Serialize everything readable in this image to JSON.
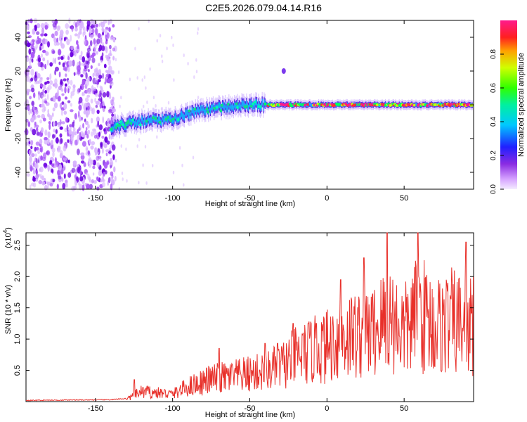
{
  "title": "C2E5.2026.079.04.14.R16",
  "colors": {
    "snr_line": "#e8302a",
    "axis": "#000000",
    "spectrogram_bg": "#ffffff"
  },
  "spectrogram": {
    "xlabel": "Height of straight line (km)",
    "ylabel": "Frequency (Hz)",
    "xlim": [
      -195,
      95
    ],
    "ylim": [
      -50,
      50
    ],
    "xticks": [
      -150,
      -100,
      -50,
      0,
      50
    ],
    "yticks": [
      -40,
      -20,
      0,
      20,
      40
    ],
    "colorbar_label": "Normalized spectral amplitude",
    "colorbar_ticks": [
      "0.0",
      "0.2",
      "0.4",
      "0.6",
      "0.8"
    ],
    "colorbar_tick_values": [
      0.0,
      0.2,
      0.4,
      0.6,
      0.8
    ],
    "noise_region_x": [
      -195,
      -137
    ],
    "signal_trend": [
      {
        "x": -140,
        "f": -13
      },
      {
        "x": -120,
        "f": -10
      },
      {
        "x": -100,
        "f": -8
      },
      {
        "x": -80,
        "f": -3
      },
      {
        "x": -60,
        "f": -1
      },
      {
        "x": -40,
        "f": 0
      },
      {
        "x": 0,
        "f": 0
      },
      {
        "x": 40,
        "f": 0
      },
      {
        "x": 95,
        "f": 0
      }
    ]
  },
  "chart_data": {
    "type": "line",
    "xlabel": "Height of straight line (km)",
    "ylabel": "SNR (10 * v/v)",
    "y_multiplier": "(x10",
    "y_multiplier_exp": "4",
    "y_multiplier_close": ")",
    "xlim": [
      -195,
      95
    ],
    "ylim": [
      0,
      2.7
    ],
    "xticks": [
      -150,
      -100,
      -50,
      0,
      50
    ],
    "yticks": [
      0.5,
      1.0,
      1.5,
      2.0,
      2.5
    ],
    "ytick_labels": [
      "0.5",
      "1.0",
      "1.5",
      "2.0",
      "2.5"
    ],
    "series": [
      {
        "name": "SNR",
        "envelope": [
          {
            "x": -195,
            "y": 0.02
          },
          {
            "x": -140,
            "y": 0.03
          },
          {
            "x": -130,
            "y": 0.05
          },
          {
            "x": -120,
            "y": 0.2
          },
          {
            "x": -100,
            "y": 0.15
          },
          {
            "x": -90,
            "y": 0.3
          },
          {
            "x": -75,
            "y": 0.45
          },
          {
            "x": -60,
            "y": 0.5
          },
          {
            "x": -40,
            "y": 0.6
          },
          {
            "x": -30,
            "y": 0.7
          },
          {
            "x": -20,
            "y": 0.9
          },
          {
            "x": -10,
            "y": 1.0
          },
          {
            "x": 0,
            "y": 1.1
          },
          {
            "x": 10,
            "y": 1.3
          },
          {
            "x": 20,
            "y": 1.35
          },
          {
            "x": 30,
            "y": 1.4
          },
          {
            "x": 40,
            "y": 1.7
          },
          {
            "x": 50,
            "y": 1.4
          },
          {
            "x": 60,
            "y": 1.8
          },
          {
            "x": 70,
            "y": 1.5
          },
          {
            "x": 80,
            "y": 1.6
          },
          {
            "x": 95,
            "y": 1.5
          }
        ],
        "peaks": [
          {
            "x": -125,
            "y": 0.35
          },
          {
            "x": -70,
            "y": 0.85
          },
          {
            "x": -40,
            "y": 0.93
          },
          {
            "x": -32,
            "y": 0.93
          },
          {
            "x": -22,
            "y": 1.25
          },
          {
            "x": -7,
            "y": 1.25
          },
          {
            "x": 9,
            "y": 1.95
          },
          {
            "x": 24,
            "y": 2.3
          },
          {
            "x": 39,
            "y": 2.7
          },
          {
            "x": 59,
            "y": 2.7
          },
          {
            "x": 90,
            "y": 2.55
          },
          {
            "x": 95,
            "y": 2.0
          }
        ]
      }
    ]
  }
}
